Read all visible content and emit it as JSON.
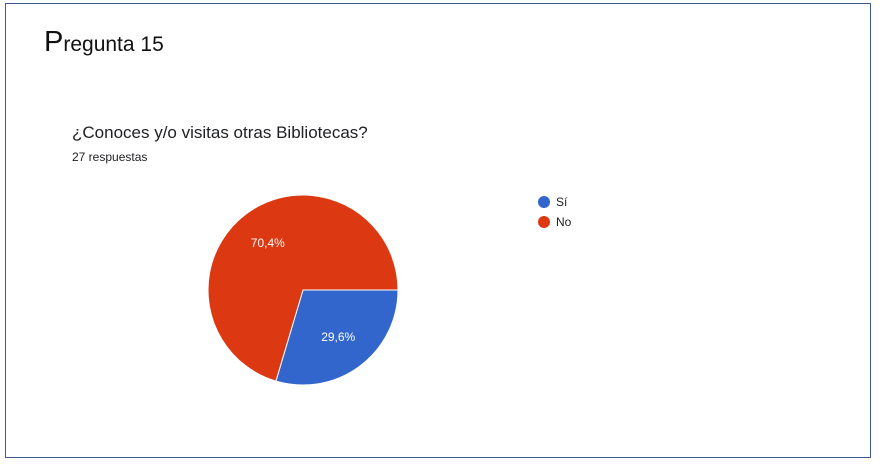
{
  "page": {
    "heading_initial": "P",
    "heading_rest": "regunta 15"
  },
  "chart_data": {
    "type": "pie",
    "title": "¿Conoces y/o visitas otras Bibliotecas?",
    "subtitle": "27 respuestas",
    "categories": [
      "Sí",
      "No"
    ],
    "values": [
      29.6,
      70.4
    ],
    "labels": [
      "29,6%",
      "70,4%"
    ],
    "colors": [
      "#3366cc",
      "#dc3912"
    ],
    "legend_position": "right"
  }
}
